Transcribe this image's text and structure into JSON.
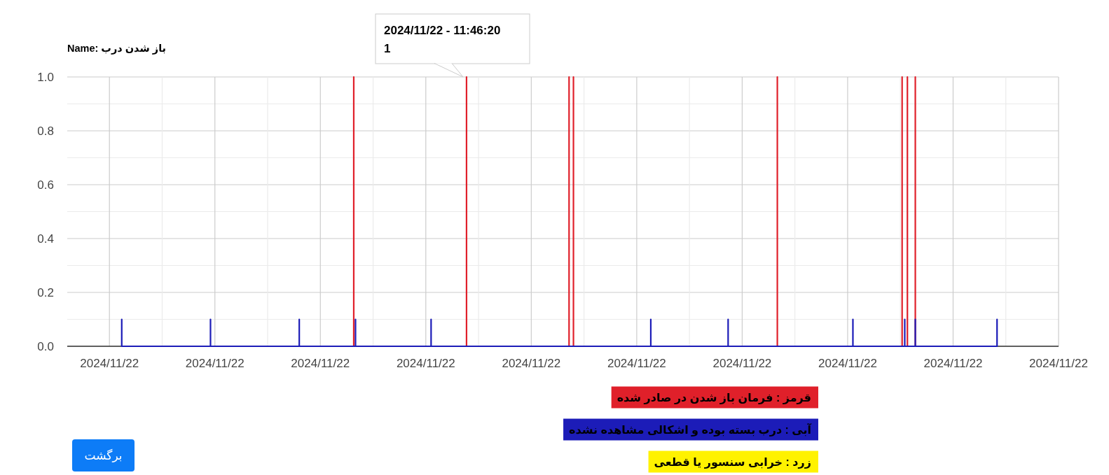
{
  "chart_data": {
    "type": "line",
    "title": "Name: باز شدن درب",
    "xlim": [
      "2024-11-22T04:12",
      "2024-11-22T23:00"
    ],
    "xticks": [
      {
        "value": "2024-11-22T05:00",
        "label": "2024/11/22"
      },
      {
        "value": "2024-11-22T07:00",
        "label": "2024/11/22"
      },
      {
        "value": "2024-11-22T09:00",
        "label": "2024/11/22"
      },
      {
        "value": "2024-11-22T11:00",
        "label": "2024/11/22"
      },
      {
        "value": "2024-11-22T13:00",
        "label": "2024/11/22"
      },
      {
        "value": "2024-11-22T15:00",
        "label": "2024/11/22"
      },
      {
        "value": "2024-11-22T17:00",
        "label": "2024/11/22"
      },
      {
        "value": "2024-11-22T19:00",
        "label": "2024/11/22"
      },
      {
        "value": "2024-11-22T21:00",
        "label": "2024/11/22"
      },
      {
        "value": "2024-11-22T23:00",
        "label": "2024/11/22"
      }
    ],
    "ylim": [
      0,
      1
    ],
    "yticks": [
      {
        "value": 0,
        "label": "0.0"
      },
      {
        "value": 0.2,
        "label": "0.2"
      },
      {
        "value": 0.4,
        "label": "0.4"
      },
      {
        "value": 0.6,
        "label": "0.6"
      },
      {
        "value": 0.8,
        "label": "0.8"
      },
      {
        "value": 1,
        "label": "1.0"
      }
    ],
    "grid": true,
    "legend": "bottom",
    "series": [
      {
        "name": "قرمز : فرمان باز شدن در صادر شده",
        "color": "#e0202a",
        "x": [
          "2024-11-22T09:38",
          "2024-11-22T09:38",
          "2024-11-22T09:38",
          "2024-11-22T11:46:20",
          "2024-11-22T11:46:20",
          "2024-11-22T11:46:20",
          "2024-11-22T13:43",
          "2024-11-22T13:43",
          "2024-11-22T13:43",
          "2024-11-22T13:48",
          "2024-11-22T13:48",
          "2024-11-22T13:48",
          "2024-11-22T17:40",
          "2024-11-22T17:40",
          "2024-11-22T17:40",
          "2024-11-22T20:02",
          "2024-11-22T20:02",
          "2024-11-22T20:02",
          "2024-11-22T20:08",
          "2024-11-22T20:08",
          "2024-11-22T20:08",
          "2024-11-22T20:17",
          "2024-11-22T20:17",
          "2024-11-22T20:17"
        ],
        "values": [
          0,
          1,
          0,
          0,
          1,
          0,
          0,
          1,
          0,
          0,
          1,
          0,
          0,
          1,
          0,
          0,
          1,
          0,
          0,
          1,
          0,
          0,
          1,
          0
        ]
      },
      {
        "name": "آبی : درب بسته بوده و اشکالی مشاهده نشده",
        "color": "#1c1cb8",
        "x": [
          "2024-11-22T05:14",
          "2024-11-22T05:14",
          "2024-11-22T05:14",
          "2024-11-22T06:55",
          "2024-11-22T06:55",
          "2024-11-22T06:55",
          "2024-11-22T08:36",
          "2024-11-22T08:36",
          "2024-11-22T08:36",
          "2024-11-22T09:40",
          "2024-11-22T09:40",
          "2024-11-22T09:40",
          "2024-11-22T11:06",
          "2024-11-22T11:06",
          "2024-11-22T11:06",
          "2024-11-22T15:16",
          "2024-11-22T15:16",
          "2024-11-22T15:16",
          "2024-11-22T16:44",
          "2024-11-22T16:44",
          "2024-11-22T16:44",
          "2024-11-22T19:06",
          "2024-11-22T19:06",
          "2024-11-22T19:06",
          "2024-11-22T20:05",
          "2024-11-22T20:05",
          "2024-11-22T20:05",
          "2024-11-22T20:17",
          "2024-11-22T20:17",
          "2024-11-22T20:17",
          "2024-11-22T21:50",
          "2024-11-22T21:50",
          "2024-11-22T21:50"
        ],
        "values": [
          0,
          0.1,
          0,
          0,
          0.1,
          0,
          0,
          0.1,
          0,
          0,
          0.1,
          0,
          0,
          0.1,
          0,
          0,
          0.1,
          0,
          0,
          0.1,
          0,
          0,
          0.1,
          0,
          0,
          0.1,
          0,
          0,
          0.1,
          0,
          0,
          0.1,
          0
        ]
      },
      {
        "name": "زرد : خرابی سنسور یا قطعی",
        "color": "#fff200"
      }
    ],
    "annotations": [
      "2024/11/22 - 11:46:20",
      "1",
      "برگشت"
    ]
  }
}
